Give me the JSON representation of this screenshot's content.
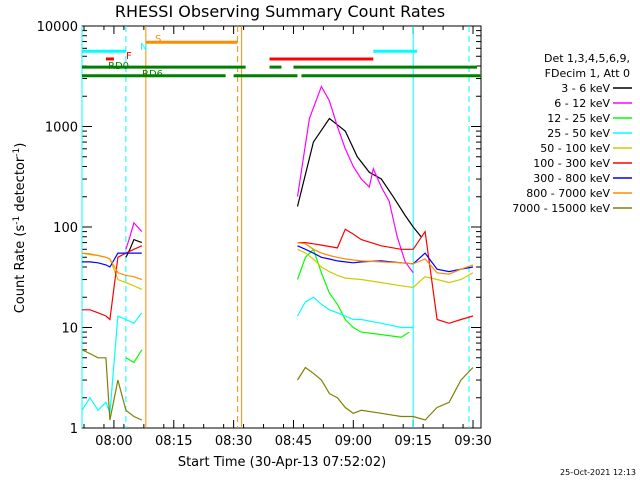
{
  "chart_data": {
    "type": "line",
    "title": "RHESSI Observing Summary Count Rates",
    "xlabel": "Start Time (30-Apr-13 07:52:02)",
    "ylabel": "Count Rate (s⁻¹ detector⁻¹)",
    "ylabel_main": "Count Rate (s",
    "ylabel_sup1": "-1",
    "ylabel_mid": " detector",
    "ylabel_sup2": "-1",
    "ylabel_end": ")",
    "y_scale": "log",
    "ylim": [
      1,
      10000
    ],
    "xlim": [
      0,
      100
    ],
    "x_ticks": [
      {
        "value": 8,
        "label": "08:00"
      },
      {
        "value": 23,
        "label": "08:15"
      },
      {
        "value": 38,
        "label": "08:30"
      },
      {
        "value": 53,
        "label": "08:45"
      },
      {
        "value": 68,
        "label": "09:00"
      },
      {
        "value": 83,
        "label": "09:15"
      },
      {
        "value": 98,
        "label": "09:30"
      }
    ],
    "y_ticks": [
      {
        "value": 1,
        "label": "1"
      },
      {
        "value": 10,
        "label": "10"
      },
      {
        "value": 100,
        "label": "100"
      },
      {
        "value": 1000,
        "label": "1000"
      },
      {
        "value": 10000,
        "label": "10000"
      }
    ],
    "legend_title": [
      "Det 1,3,4,5,6,9,",
      "FDecim 1, Att 0"
    ],
    "legend_position": "right",
    "series": [
      {
        "name": "3 - 6 keV",
        "color": "#000000",
        "x": [
          0,
          7,
          9,
          11,
          12,
          13,
          15,
          16,
          22,
          25,
          30,
          35,
          39,
          40,
          42,
          44,
          46,
          48,
          50,
          52,
          54,
          58,
          62,
          66,
          69,
          72,
          75,
          78,
          81,
          83,
          85,
          88,
          92,
          95,
          98
        ],
        "y": [
          null,
          null,
          null,
          50,
          60,
          75,
          70,
          null,
          null,
          null,
          null,
          null,
          null,
          null,
          null,
          null,
          null,
          null,
          null,
          null,
          160,
          700,
          1200,
          900,
          500,
          350,
          300,
          200,
          130,
          100,
          80,
          null,
          null,
          null,
          null
        ]
      },
      {
        "name": "6 - 12 keV",
        "color": "#ff00ff",
        "x": [
          0,
          7,
          9,
          11,
          12,
          13,
          15,
          16,
          54,
          57,
          60,
          62,
          64,
          66,
          68,
          70,
          72,
          73,
          75,
          77,
          79,
          81,
          83,
          85,
          87
        ],
        "y": [
          null,
          null,
          null,
          60,
          80,
          110,
          90,
          null,
          200,
          1200,
          2500,
          1800,
          1000,
          600,
          400,
          300,
          250,
          380,
          250,
          180,
          80,
          45,
          35,
          null,
          null
        ]
      },
      {
        "name": "12 - 25 keV",
        "color": "#00ff00",
        "x": [
          0,
          5,
          7,
          9,
          11,
          13,
          15,
          16,
          54,
          56,
          58,
          60,
          62,
          64,
          66,
          68,
          70,
          75,
          80,
          82,
          85,
          90,
          95,
          98
        ],
        "y": [
          null,
          null,
          null,
          null,
          5,
          4.5,
          6,
          null,
          30,
          50,
          60,
          35,
          22,
          17,
          12,
          10,
          9,
          8.5,
          8,
          9,
          null,
          null,
          null,
          null
        ]
      },
      {
        "name": "25 - 50 keV",
        "color": "#00ffff",
        "x": [
          0,
          2,
          4,
          6,
          7,
          9,
          11,
          13,
          15,
          16,
          54,
          56,
          58,
          60,
          62,
          64,
          66,
          68,
          70,
          75,
          80,
          83,
          85,
          88,
          92,
          95,
          98
        ],
        "y": [
          1.5,
          2,
          1.5,
          1.8,
          1.4,
          13,
          12,
          11,
          14,
          null,
          13,
          18,
          20,
          17,
          15,
          14,
          13,
          12,
          12,
          11,
          10,
          10,
          null,
          null,
          null,
          null,
          null
        ]
      },
      {
        "name": "50 - 100 keV",
        "color": "#cccc00",
        "x": [
          0,
          2,
          4,
          6,
          7,
          9,
          11,
          13,
          15,
          16,
          54,
          56,
          58,
          60,
          62,
          64,
          66,
          70,
          75,
          80,
          83,
          86,
          89,
          92,
          95,
          98
        ],
        "y": [
          55,
          53,
          52,
          50,
          48,
          30,
          28,
          26,
          24,
          null,
          60,
          55,
          48,
          40,
          36,
          33,
          31,
          30,
          28,
          26,
          25,
          32,
          30,
          28,
          30,
          35
        ]
      },
      {
        "name": "100 - 300 keV",
        "color": "#ff0000",
        "x": [
          0,
          2,
          4,
          6,
          7,
          9,
          11,
          13,
          15,
          16,
          54,
          56,
          58,
          60,
          62,
          64,
          66,
          68,
          70,
          75,
          80,
          83,
          86,
          89,
          92,
          95,
          98
        ],
        "y": [
          15,
          15,
          14,
          13,
          12,
          50,
          55,
          60,
          65,
          null,
          70,
          70,
          68,
          66,
          64,
          62,
          95,
          85,
          75,
          65,
          60,
          60,
          90,
          12,
          11,
          12,
          13
        ]
      },
      {
        "name": "300 - 800 keV",
        "color": "#0000ff",
        "x": [
          0,
          2,
          4,
          6,
          7,
          9,
          11,
          13,
          15,
          16,
          54,
          56,
          58,
          60,
          62,
          64,
          66,
          68,
          70,
          75,
          80,
          83,
          86,
          89,
          92,
          95,
          98
        ],
        "y": [
          45,
          45,
          44,
          42,
          40,
          55,
          55,
          55,
          55,
          null,
          65,
          60,
          55,
          50,
          48,
          46,
          45,
          44,
          45,
          46,
          44,
          43,
          55,
          38,
          36,
          38,
          40
        ]
      },
      {
        "name": "800 - 7000 keV",
        "color": "#ff8c00",
        "x": [
          0,
          2,
          4,
          6,
          7,
          9,
          11,
          13,
          15,
          16,
          54,
          56,
          58,
          60,
          62,
          64,
          66,
          68,
          70,
          75,
          80,
          83,
          86,
          89,
          92,
          95,
          98
        ],
        "y": [
          55,
          54,
          52,
          50,
          48,
          35,
          33,
          32,
          30,
          null,
          70,
          68,
          60,
          55,
          52,
          50,
          48,
          47,
          46,
          45,
          44,
          43,
          48,
          35,
          34,
          38,
          42
        ]
      },
      {
        "name": "7000 - 15000 keV",
        "color": "#808000",
        "x": [
          0,
          2,
          4,
          6,
          7,
          9,
          11,
          13,
          15,
          16,
          54,
          56,
          58,
          60,
          62,
          64,
          66,
          68,
          70,
          75,
          80,
          83,
          86,
          89,
          92,
          95,
          98
        ],
        "y": [
          6,
          5.5,
          5,
          5,
          1.2,
          3,
          1.5,
          1.3,
          1.2,
          null,
          3,
          4,
          3.5,
          3,
          2.2,
          2,
          1.6,
          1.4,
          1.5,
          1.4,
          1.3,
          1.3,
          1.2,
          1.6,
          1.8,
          3,
          4
        ]
      }
    ],
    "flags": [
      {
        "label": "RD0",
        "color": "#008000",
        "y": 3200,
        "segments": [
          [
            0,
            36
          ],
          [
            38,
            54
          ],
          [
            55,
            100
          ]
        ]
      },
      {
        "label": "RD6",
        "color": "#008000",
        "y": 3900,
        "segments": [
          [
            0,
            41
          ],
          [
            47,
            50
          ],
          [
            53,
            99
          ]
        ]
      },
      {
        "label": "F",
        "color": "#ff0000",
        "y": 4700,
        "segments": [
          [
            6,
            8
          ],
          [
            47,
            73
          ]
        ]
      },
      {
        "label": "N",
        "color": "#00ffff",
        "y": 5600,
        "segments": [
          [
            0,
            11
          ],
          [
            73,
            84
          ]
        ]
      },
      {
        "label": "S",
        "color": "#ff8c00",
        "y": 6900,
        "segments": [
          [
            16,
            39
          ]
        ]
      }
    ],
    "vlines": [
      {
        "x": 0,
        "color": "#00ffff",
        "style": "solid"
      },
      {
        "x": 11,
        "color": "#00ffff",
        "style": "dashed"
      },
      {
        "x": 16,
        "color": "#ff8c00",
        "style": "solid"
      },
      {
        "x": 39,
        "color": "#ff8c00",
        "style": "dashed"
      },
      {
        "x": 40,
        "color": "#ff8c00",
        "style": "solid"
      },
      {
        "x": 83,
        "color": "#00ffff",
        "style": "solid"
      },
      {
        "x": 97,
        "color": "#00ffff",
        "style": "dashed"
      }
    ],
    "timestamp": "25-Oct-2021 12:13"
  }
}
